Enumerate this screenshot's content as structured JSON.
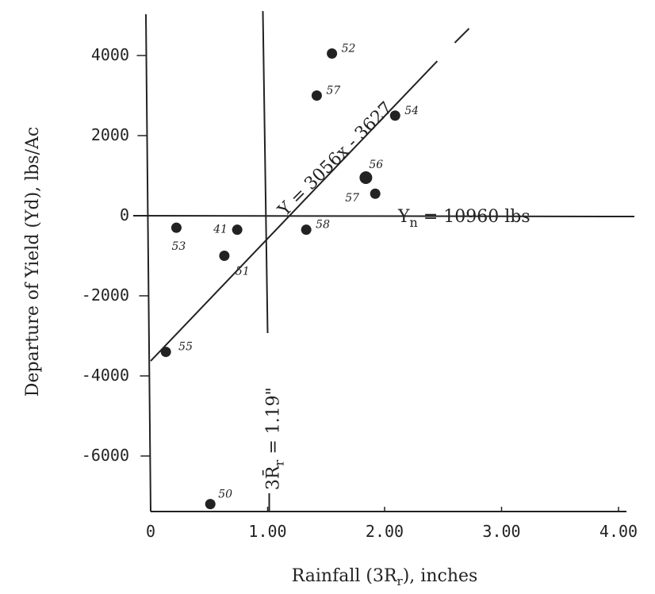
{
  "chart_data": {
    "type": "scatter",
    "title": "",
    "xlabel": "Rainfall (3R",
    "xlabel_sub": "r",
    "xlabel_suffix": "), inches",
    "ylabel": "Departure of Yield (Yd),  lbs/Ac",
    "xlim": [
      0,
      4
    ],
    "ylim": [
      -7500,
      5000
    ],
    "x_ticks": [
      {
        "value": 0,
        "label": "0"
      },
      {
        "value": 1,
        "label": "1.00"
      },
      {
        "value": 2,
        "label": "2.00"
      },
      {
        "value": 3,
        "label": "3.00"
      },
      {
        "value": 4,
        "label": "4.00"
      }
    ],
    "y_ticks": [
      {
        "value": 4000,
        "label": "4000"
      },
      {
        "value": 2000,
        "label": "2000"
      },
      {
        "value": 0,
        "label": "0"
      },
      {
        "value": -2000,
        "label": "-2000"
      },
      {
        "value": -4000,
        "label": "-4000"
      },
      {
        "value": -6000,
        "label": "-6000"
      }
    ],
    "grid": false,
    "points": [
      {
        "label": "52",
        "x": 1.55,
        "y": 4050
      },
      {
        "label": "57",
        "x": 1.42,
        "y": 3000
      },
      {
        "label": "54",
        "x": 2.09,
        "y": 2500
      },
      {
        "label": "56",
        "x": 1.84,
        "y": 950
      },
      {
        "label": "57",
        "x": 1.92,
        "y": 550
      },
      {
        "label": "53",
        "x": 0.22,
        "y": -300
      },
      {
        "label": "41",
        "x": 0.74,
        "y": -350
      },
      {
        "label": "58",
        "x": 1.33,
        "y": -350
      },
      {
        "label": "51",
        "x": 0.63,
        "y": -1000
      },
      {
        "label": "55",
        "x": 0.13,
        "y": -3400
      },
      {
        "label": "50",
        "x": 0.51,
        "y": -7200
      }
    ],
    "regression": {
      "label": "Y = 3056x - 3627",
      "slope": 3056,
      "intercept": -3627,
      "x_from": 0,
      "x_to": 2.45
    },
    "annotations": {
      "horizontal": {
        "prefix": "Y",
        "sub": "n",
        "suffix": " = 10960 lbs",
        "y": 0
      },
      "vertical": {
        "prefix": "3R̄",
        "sub": "r",
        "suffix": " = 1.19\"",
        "x": 1.0
      }
    }
  }
}
